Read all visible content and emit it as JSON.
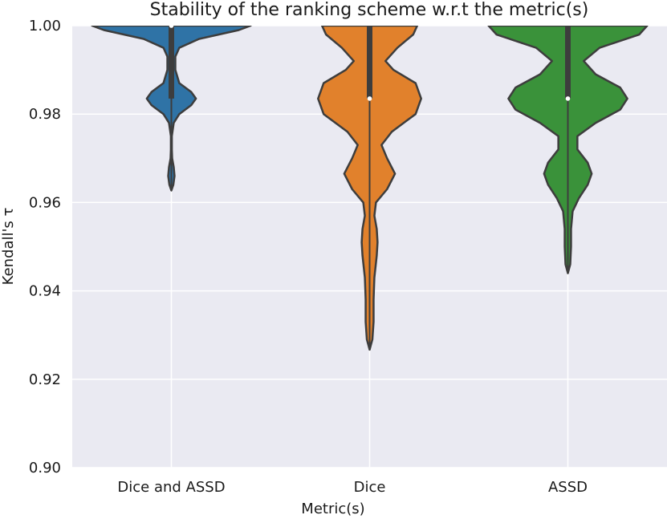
{
  "chart_data": {
    "type": "violin",
    "title": "Stability of the ranking scheme w.r.t the metric(s)",
    "xlabel": "Metric(s)",
    "ylabel": "Kendall's τ",
    "ylim": [
      0.9,
      1.0
    ],
    "yticks": [
      "0.90",
      "0.92",
      "0.94",
      "0.96",
      "0.98",
      "1.00"
    ],
    "yticks_values": [
      0.9,
      0.92,
      0.94,
      0.96,
      0.98,
      1.0
    ],
    "grid": true,
    "categories": [
      "Dice and ASSD",
      "Dice",
      "ASSD"
    ],
    "series": [
      {
        "name": "Dice and ASSD",
        "color": "#2f73a6",
        "density": [
          [
            0.9627,
            0.0
          ],
          [
            0.964,
            0.025
          ],
          [
            0.966,
            0.04
          ],
          [
            0.968,
            0.03
          ],
          [
            0.97,
            0.01
          ],
          [
            0.972,
            0.006
          ],
          [
            0.975,
            0.006
          ],
          [
            0.978,
            0.03
          ],
          [
            0.98,
            0.1
          ],
          [
            0.982,
            0.25
          ],
          [
            0.9835,
            0.31
          ],
          [
            0.985,
            0.25
          ],
          [
            0.987,
            0.1
          ],
          [
            0.99,
            0.05
          ],
          [
            0.993,
            0.05
          ],
          [
            0.995,
            0.1
          ],
          [
            0.997,
            0.35
          ],
          [
            0.999,
            0.85
          ],
          [
            1.0,
            1.0
          ]
        ],
        "whisker": [
          0.9627,
          1.0
        ],
        "q1": 0.9835,
        "q3": 1.0,
        "median": 1.0
      },
      {
        "name": "Dice",
        "color": "#e1812c",
        "density": [
          [
            0.9267,
            0.0
          ],
          [
            0.929,
            0.035
          ],
          [
            0.933,
            0.05
          ],
          [
            0.938,
            0.05
          ],
          [
            0.943,
            0.06
          ],
          [
            0.948,
            0.09
          ],
          [
            0.951,
            0.1
          ],
          [
            0.954,
            0.09
          ],
          [
            0.957,
            0.06
          ],
          [
            0.96,
            0.08
          ],
          [
            0.963,
            0.22
          ],
          [
            0.9665,
            0.32
          ],
          [
            0.97,
            0.22
          ],
          [
            0.973,
            0.15
          ],
          [
            0.976,
            0.28
          ],
          [
            0.98,
            0.58
          ],
          [
            0.9835,
            0.65
          ],
          [
            0.987,
            0.58
          ],
          [
            0.99,
            0.3
          ],
          [
            0.992,
            0.2
          ],
          [
            0.995,
            0.35
          ],
          [
            0.998,
            0.55
          ],
          [
            1.0,
            0.6
          ]
        ],
        "whisker": [
          0.9267,
          1.0
        ],
        "q1": 0.9835,
        "q3": 1.0,
        "median": 0.9835
      },
      {
        "name": "ASSD",
        "color": "#3a923a",
        "density": [
          [
            0.944,
            0.0
          ],
          [
            0.946,
            0.03
          ],
          [
            0.95,
            0.04
          ],
          [
            0.954,
            0.04
          ],
          [
            0.958,
            0.06
          ],
          [
            0.961,
            0.14
          ],
          [
            0.964,
            0.25
          ],
          [
            0.9665,
            0.3
          ],
          [
            0.969,
            0.25
          ],
          [
            0.972,
            0.12
          ],
          [
            0.975,
            0.12
          ],
          [
            0.978,
            0.35
          ],
          [
            0.981,
            0.66
          ],
          [
            0.9835,
            0.75
          ],
          [
            0.986,
            0.66
          ],
          [
            0.989,
            0.35
          ],
          [
            0.992,
            0.2
          ],
          [
            0.995,
            0.4
          ],
          [
            0.998,
            0.9
          ],
          [
            1.0,
            1.0
          ]
        ],
        "whisker": [
          0.944,
          1.0
        ],
        "q1": 0.9835,
        "q3": 1.0,
        "median": 0.9835
      }
    ]
  }
}
